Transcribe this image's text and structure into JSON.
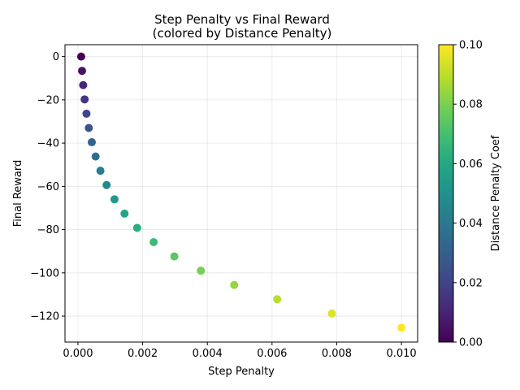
{
  "chart_data": {
    "type": "scatter",
    "title": "Step Penalty vs Final Reward",
    "subtitle": "(colored by Distance Penalty)",
    "xlabel": "Step Penalty",
    "ylabel": "Final Reward",
    "colorbar_label": "Distance Penalty Coef",
    "xlim": [
      -0.0004,
      0.0105
    ],
    "ylim": [
      -132,
      5.5
    ],
    "x_ticks": [
      "0.000",
      "0.002",
      "0.004",
      "0.006",
      "0.008",
      "0.010"
    ],
    "x_tick_values": [
      0,
      0.002,
      0.004,
      0.006,
      0.008,
      0.01
    ],
    "y_ticks": [
      "0",
      "−20",
      "−40",
      "−60",
      "−80",
      "−100",
      "−120"
    ],
    "y_tick_values": [
      0,
      -20,
      -40,
      -60,
      -80,
      -100,
      -120
    ],
    "colorbar_range": [
      0,
      0.1
    ],
    "colorbar_ticks": [
      "0.00",
      "0.02",
      "0.04",
      "0.06",
      "0.08",
      "0.10"
    ],
    "colorbar_tick_values": [
      0,
      0.02,
      0.04,
      0.06,
      0.08,
      0.1
    ],
    "grid": true,
    "colormap": "viridis",
    "points": [
      {
        "x": 0.0001,
        "y": 0,
        "c": 0.0
      },
      {
        "x": 0.000127,
        "y": -6.6,
        "c": 0.005
      },
      {
        "x": 0.000162,
        "y": -13.2,
        "c": 0.011
      },
      {
        "x": 0.000207,
        "y": -19.8,
        "c": 0.016
      },
      {
        "x": 0.000264,
        "y": -26.4,
        "c": 0.021
      },
      {
        "x": 0.000336,
        "y": -33.0,
        "c": 0.026
      },
      {
        "x": 0.000428,
        "y": -39.6,
        "c": 0.032
      },
      {
        "x": 0.000546,
        "y": -46.2,
        "c": 0.037
      },
      {
        "x": 0.000695,
        "y": -52.8,
        "c": 0.042
      },
      {
        "x": 0.000886,
        "y": -59.4,
        "c": 0.047
      },
      {
        "x": 0.00113,
        "y": -66.0,
        "c": 0.053
      },
      {
        "x": 0.00144,
        "y": -72.6,
        "c": 0.058
      },
      {
        "x": 0.00183,
        "y": -79.2,
        "c": 0.063
      },
      {
        "x": 0.00234,
        "y": -85.8,
        "c": 0.068
      },
      {
        "x": 0.00298,
        "y": -92.4,
        "c": 0.074
      },
      {
        "x": 0.0038,
        "y": -99.0,
        "c": 0.079
      },
      {
        "x": 0.00483,
        "y": -105.6,
        "c": 0.084
      },
      {
        "x": 0.00616,
        "y": -112.2,
        "c": 0.089
      },
      {
        "x": 0.00785,
        "y": -118.8,
        "c": 0.095
      },
      {
        "x": 0.01,
        "y": -125.4,
        "c": 0.1
      }
    ]
  }
}
